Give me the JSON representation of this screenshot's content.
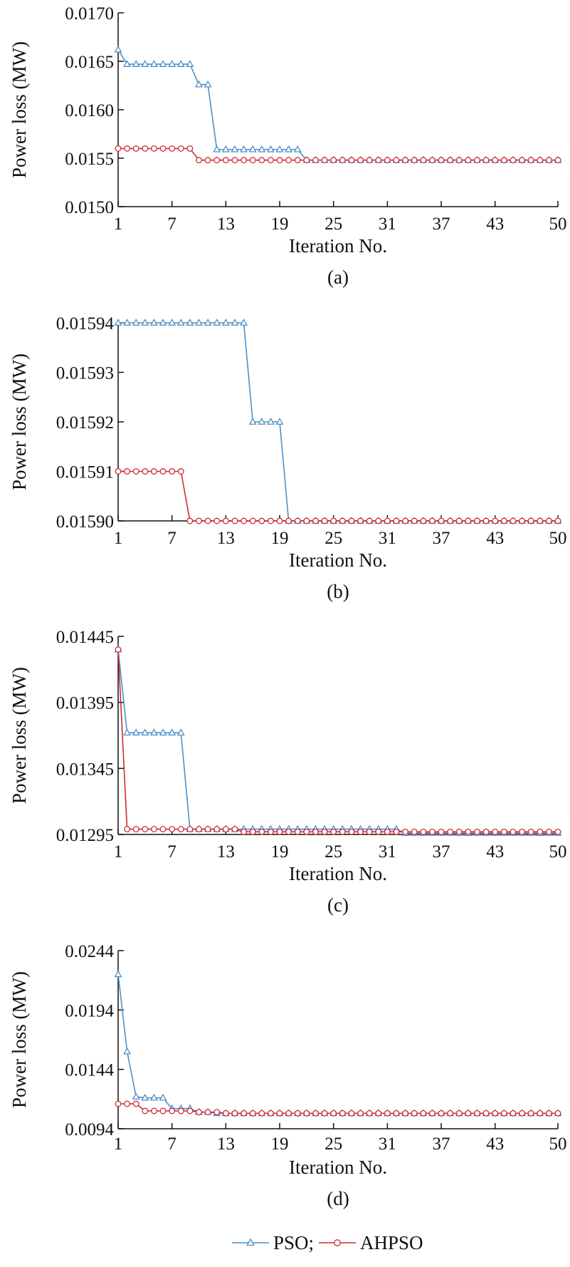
{
  "chart_data": [
    {
      "type": "line",
      "caption": "(a)",
      "xlabel": "Iteration No.",
      "ylabel": "Power loss (MW)",
      "xlim": [
        1,
        50
      ],
      "ylim": [
        0.015,
        0.017
      ],
      "xticks": [
        1,
        7,
        13,
        19,
        25,
        31,
        37,
        43,
        50
      ],
      "yticks": [
        0.015,
        0.0155,
        0.016,
        0.0165,
        0.017
      ],
      "ytick_labels": [
        "0.0150",
        "0.0155",
        "0.0160",
        "0.0165",
        "0.0170"
      ],
      "series": [
        {
          "name": "PSO",
          "values": [
            0.01662,
            0.01647,
            0.01647,
            0.01647,
            0.01647,
            0.01647,
            0.01647,
            0.01647,
            0.01647,
            0.01626,
            0.01626,
            0.01559,
            0.01559,
            0.01559,
            0.01559,
            0.01559,
            0.01559,
            0.01559,
            0.01559,
            0.01559,
            0.01559,
            0.01548,
            0.01548,
            0.01548,
            0.01548,
            0.01548,
            0.01548,
            0.01548,
            0.01548,
            0.01548,
            0.01548,
            0.01548,
            0.01548,
            0.01548,
            0.01548,
            0.01548,
            0.01548,
            0.01548,
            0.01548,
            0.01548,
            0.01548,
            0.01548,
            0.01548,
            0.01548,
            0.01548,
            0.01548,
            0.01548,
            0.01548,
            0.01548,
            0.01548
          ]
        },
        {
          "name": "AHPSO",
          "values": [
            0.0156,
            0.0156,
            0.0156,
            0.0156,
            0.0156,
            0.0156,
            0.0156,
            0.0156,
            0.0156,
            0.01548,
            0.01548,
            0.01548,
            0.01548,
            0.01548,
            0.01548,
            0.01548,
            0.01548,
            0.01548,
            0.01548,
            0.01548,
            0.01548,
            0.01548,
            0.01548,
            0.01548,
            0.01548,
            0.01548,
            0.01548,
            0.01548,
            0.01548,
            0.01548,
            0.01548,
            0.01548,
            0.01548,
            0.01548,
            0.01548,
            0.01548,
            0.01548,
            0.01548,
            0.01548,
            0.01548,
            0.01548,
            0.01548,
            0.01548,
            0.01548,
            0.01548,
            0.01548,
            0.01548,
            0.01548,
            0.01548,
            0.01548
          ]
        }
      ]
    },
    {
      "type": "line",
      "caption": "(b)",
      "xlabel": "Iteration No.",
      "ylabel": "Power loss (MW)",
      "xlim": [
        1,
        50
      ],
      "ylim": [
        0.0159,
        0.01594
      ],
      "xticks": [
        1,
        7,
        13,
        19,
        25,
        31,
        37,
        43,
        50
      ],
      "yticks": [
        0.0159,
        0.01591,
        0.01592,
        0.01593,
        0.01594
      ],
      "ytick_labels": [
        "0.01590",
        "0.01591",
        "0.01592",
        "0.01593",
        "0.01594"
      ],
      "series": [
        {
          "name": "PSO",
          "values": [
            0.01594,
            0.01594,
            0.01594,
            0.01594,
            0.01594,
            0.01594,
            0.01594,
            0.01594,
            0.01594,
            0.01594,
            0.01594,
            0.01594,
            0.01594,
            0.01594,
            0.01594,
            0.01592,
            0.01592,
            0.01592,
            0.01592,
            0.0159,
            0.0159,
            0.0159,
            0.0159,
            0.0159,
            0.0159,
            0.0159,
            0.0159,
            0.0159,
            0.0159,
            0.0159,
            0.0159,
            0.0159,
            0.0159,
            0.0159,
            0.0159,
            0.0159,
            0.0159,
            0.0159,
            0.0159,
            0.0159,
            0.0159,
            0.0159,
            0.0159,
            0.0159,
            0.0159,
            0.0159,
            0.0159,
            0.0159,
            0.0159,
            0.0159
          ]
        },
        {
          "name": "AHPSO",
          "values": [
            0.01591,
            0.01591,
            0.01591,
            0.01591,
            0.01591,
            0.01591,
            0.01591,
            0.01591,
            0.0159,
            0.0159,
            0.0159,
            0.0159,
            0.0159,
            0.0159,
            0.0159,
            0.0159,
            0.0159,
            0.0159,
            0.0159,
            0.0159,
            0.0159,
            0.0159,
            0.0159,
            0.0159,
            0.0159,
            0.0159,
            0.0159,
            0.0159,
            0.0159,
            0.0159,
            0.0159,
            0.0159,
            0.0159,
            0.0159,
            0.0159,
            0.0159,
            0.0159,
            0.0159,
            0.0159,
            0.0159,
            0.0159,
            0.0159,
            0.0159,
            0.0159,
            0.0159,
            0.0159,
            0.0159,
            0.0159,
            0.0159,
            0.0159
          ]
        }
      ]
    },
    {
      "type": "line",
      "caption": "(c)",
      "xlabel": "Iteration No.",
      "ylabel": "Power loss (MW)",
      "xlim": [
        1,
        50
      ],
      "ylim": [
        0.01295,
        0.01445
      ],
      "xticks": [
        1,
        7,
        13,
        19,
        25,
        31,
        37,
        43,
        50
      ],
      "yticks": [
        0.01295,
        0.01345,
        0.01395,
        0.01445
      ],
      "ytick_labels": [
        "0.01295",
        "0.01345",
        "0.01395",
        "0.01445"
      ],
      "series": [
        {
          "name": "PSO",
          "values": [
            0.01435,
            0.01372,
            0.01372,
            0.01372,
            0.01372,
            0.01372,
            0.01372,
            0.01372,
            0.01299,
            0.01299,
            0.01299,
            0.01299,
            0.01299,
            0.01299,
            0.01299,
            0.01299,
            0.01299,
            0.01299,
            0.01299,
            0.01299,
            0.01299,
            0.01299,
            0.01299,
            0.01299,
            0.01299,
            0.01299,
            0.01299,
            0.01299,
            0.01299,
            0.01299,
            0.01299,
            0.01299,
            0.01296,
            0.01296,
            0.01296,
            0.01296,
            0.01296,
            0.01296,
            0.01296,
            0.01296,
            0.01296,
            0.01296,
            0.01296,
            0.01296,
            0.01296,
            0.01296,
            0.01296,
            0.01296,
            0.01296,
            0.01296
          ]
        },
        {
          "name": "AHPSO",
          "values": [
            0.01435,
            0.01299,
            0.01299,
            0.01299,
            0.01299,
            0.01299,
            0.01299,
            0.01299,
            0.01299,
            0.01299,
            0.01299,
            0.01299,
            0.01299,
            0.01299,
            0.01297,
            0.01297,
            0.01297,
            0.01297,
            0.01297,
            0.01297,
            0.01297,
            0.01297,
            0.01297,
            0.01297,
            0.01297,
            0.01297,
            0.01297,
            0.01297,
            0.01297,
            0.01297,
            0.01297,
            0.01297,
            0.01297,
            0.01297,
            0.01297,
            0.01297,
            0.01297,
            0.01297,
            0.01297,
            0.01297,
            0.01297,
            0.01297,
            0.01297,
            0.01297,
            0.01297,
            0.01297,
            0.01297,
            0.01297,
            0.01297,
            0.01297
          ]
        }
      ]
    },
    {
      "type": "line",
      "caption": "(d)",
      "xlabel": "Iteration No.",
      "ylabel": "Power loss (MW)",
      "xlim": [
        1,
        50
      ],
      "ylim": [
        0.0094,
        0.0244
      ],
      "xticks": [
        1,
        7,
        13,
        19,
        25,
        31,
        37,
        43,
        50
      ],
      "yticks": [
        0.0094,
        0.0144,
        0.0194,
        0.0244
      ],
      "ytick_labels": [
        "0.0094",
        "0.0144",
        "0.0194",
        "0.0244"
      ],
      "series": [
        {
          "name": "PSO",
          "values": [
            0.0224,
            0.0159,
            0.0121,
            0.012,
            0.012,
            0.012,
            0.0111,
            0.0111,
            0.0111,
            0.0108,
            0.0108,
            0.0107,
            0.0107,
            0.0107,
            0.0107,
            0.0107,
            0.0107,
            0.0107,
            0.0107,
            0.0107,
            0.0107,
            0.0107,
            0.0107,
            0.0107,
            0.0107,
            0.0107,
            0.0107,
            0.0107,
            0.0107,
            0.0107,
            0.0107,
            0.0107,
            0.0107,
            0.0107,
            0.0107,
            0.0107,
            0.0107,
            0.0107,
            0.0107,
            0.0107,
            0.0107,
            0.0107,
            0.0107,
            0.0107,
            0.0107,
            0.0107,
            0.0107,
            0.0107,
            0.0107,
            0.0107
          ]
        },
        {
          "name": "AHPSO",
          "values": [
            0.0115,
            0.0115,
            0.0115,
            0.0109,
            0.0109,
            0.0109,
            0.0109,
            0.0109,
            0.0109,
            0.0108,
            0.0108,
            0.0108,
            0.0107,
            0.0107,
            0.0107,
            0.0107,
            0.0107,
            0.0107,
            0.0107,
            0.0107,
            0.0107,
            0.0107,
            0.0107,
            0.0107,
            0.0107,
            0.0107,
            0.0107,
            0.0107,
            0.0107,
            0.0107,
            0.0107,
            0.0107,
            0.0107,
            0.0107,
            0.0107,
            0.0107,
            0.0107,
            0.0107,
            0.0107,
            0.0107,
            0.0107,
            0.0107,
            0.0107,
            0.0107,
            0.0107,
            0.0107,
            0.0107,
            0.0107,
            0.0107,
            0.0107
          ]
        }
      ]
    }
  ],
  "legend": {
    "items": [
      {
        "label": "PSO;",
        "color": "#4a90c8",
        "marker": "triangle"
      },
      {
        "label": "AHPSO",
        "color": "#d02a35",
        "marker": "circle"
      }
    ]
  },
  "colors": {
    "PSO": "#4a90c8",
    "AHPSO": "#d02a35"
  }
}
